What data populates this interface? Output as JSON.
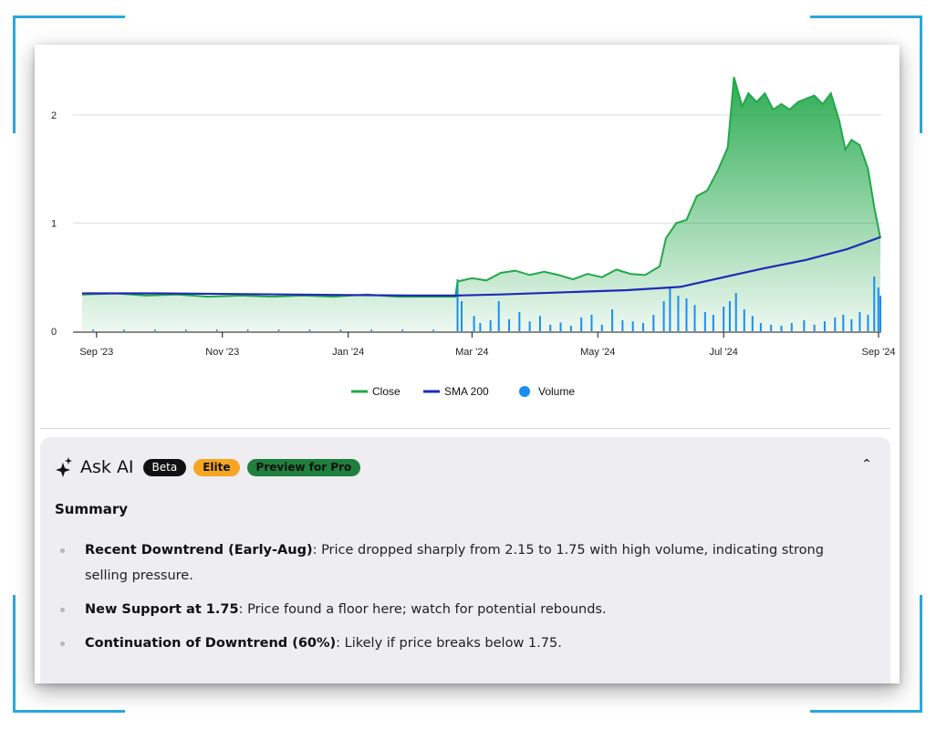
{
  "chart_data": {
    "type": "area",
    "x_ticks": [
      "Sep '23",
      "Nov '23",
      "Jan '24",
      "Mar '24",
      "May '24",
      "Jul '24",
      "Sep '24"
    ],
    "y_ticks": [
      "0",
      "1",
      "2"
    ],
    "ylim": [
      0,
      2.15
    ],
    "grid": true,
    "legend_position": "bottom-center",
    "series": [
      {
        "name": "Close",
        "color": "#22a84a",
        "points": [
          [
            "2023-08-25",
            0.34
          ],
          [
            "2023-09-10",
            0.35
          ],
          [
            "2023-09-25",
            0.33
          ],
          [
            "2023-10-10",
            0.34
          ],
          [
            "2023-10-25",
            0.32
          ],
          [
            "2023-11-10",
            0.33
          ],
          [
            "2023-11-25",
            0.32
          ],
          [
            "2023-12-10",
            0.33
          ],
          [
            "2023-12-25",
            0.32
          ],
          [
            "2024-01-10",
            0.34
          ],
          [
            "2024-01-25",
            0.32
          ],
          [
            "2024-02-10",
            0.32
          ],
          [
            "2024-02-22",
            0.32
          ],
          [
            "2024-02-23",
            0.46
          ],
          [
            "2024-03-01",
            0.49
          ],
          [
            "2024-03-08",
            0.47
          ],
          [
            "2024-03-15",
            0.54
          ],
          [
            "2024-03-22",
            0.56
          ],
          [
            "2024-03-29",
            0.52
          ],
          [
            "2024-04-05",
            0.55
          ],
          [
            "2024-04-12",
            0.52
          ],
          [
            "2024-04-19",
            0.48
          ],
          [
            "2024-04-26",
            0.53
          ],
          [
            "2024-05-03",
            0.5
          ],
          [
            "2024-05-10",
            0.57
          ],
          [
            "2024-05-17",
            0.53
          ],
          [
            "2024-05-24",
            0.52
          ],
          [
            "2024-05-31",
            0.6
          ],
          [
            "2024-06-03",
            0.86
          ],
          [
            "2024-06-08",
            1.0
          ],
          [
            "2024-06-13",
            1.03
          ],
          [
            "2024-06-18",
            1.25
          ],
          [
            "2024-06-23",
            1.3
          ],
          [
            "2024-06-28",
            1.48
          ],
          [
            "2024-07-03",
            1.7
          ],
          [
            "2024-07-06",
            2.35
          ],
          [
            "2024-07-10",
            2.08
          ],
          [
            "2024-07-13",
            2.2
          ],
          [
            "2024-07-17",
            2.12
          ],
          [
            "2024-07-21",
            2.2
          ],
          [
            "2024-07-25",
            2.05
          ],
          [
            "2024-07-29",
            2.1
          ],
          [
            "2024-08-02",
            2.05
          ],
          [
            "2024-08-06",
            2.12
          ],
          [
            "2024-08-10",
            2.15
          ],
          [
            "2024-08-14",
            2.18
          ],
          [
            "2024-08-18",
            2.1
          ],
          [
            "2024-08-22",
            2.2
          ],
          [
            "2024-08-26",
            1.95
          ],
          [
            "2024-08-29",
            1.68
          ],
          [
            "2024-09-01",
            1.77
          ],
          [
            "2024-09-05",
            1.72
          ],
          [
            "2024-09-09",
            1.5
          ],
          [
            "2024-09-12",
            1.15
          ],
          [
            "2024-09-15",
            0.86
          ]
        ]
      },
      {
        "name": "SMA 200",
        "color": "#1f2bb5",
        "points": [
          [
            "2023-08-25",
            0.35
          ],
          [
            "2023-10-01",
            0.35
          ],
          [
            "2023-12-01",
            0.34
          ],
          [
            "2024-02-01",
            0.33
          ],
          [
            "2024-02-22",
            0.33
          ],
          [
            "2024-03-15",
            0.34
          ],
          [
            "2024-04-15",
            0.36
          ],
          [
            "2024-05-15",
            0.38
          ],
          [
            "2024-06-10",
            0.41
          ],
          [
            "2024-07-01",
            0.5
          ],
          [
            "2024-07-20",
            0.58
          ],
          [
            "2024-08-10",
            0.66
          ],
          [
            "2024-08-30",
            0.76
          ],
          [
            "2024-09-15",
            0.87
          ]
        ]
      },
      {
        "name": "Volume",
        "color": "#1a8ef0",
        "bars_relative": [
          [
            "2024-02-23",
            0.95
          ],
          [
            "2024-02-25",
            0.55
          ],
          [
            "2024-03-02",
            0.28
          ],
          [
            "2024-03-05",
            0.15
          ],
          [
            "2024-03-10",
            0.2
          ],
          [
            "2024-03-14",
            0.55
          ],
          [
            "2024-03-19",
            0.22
          ],
          [
            "2024-03-24",
            0.35
          ],
          [
            "2024-03-29",
            0.18
          ],
          [
            "2024-04-03",
            0.28
          ],
          [
            "2024-04-08",
            0.12
          ],
          [
            "2024-04-13",
            0.16
          ],
          [
            "2024-04-18",
            0.1
          ],
          [
            "2024-04-23",
            0.25
          ],
          [
            "2024-04-28",
            0.3
          ],
          [
            "2024-05-03",
            0.12
          ],
          [
            "2024-05-08",
            0.4
          ],
          [
            "2024-05-13",
            0.2
          ],
          [
            "2024-05-18",
            0.18
          ],
          [
            "2024-05-23",
            0.15
          ],
          [
            "2024-05-28",
            0.3
          ],
          [
            "2024-06-02",
            0.55
          ],
          [
            "2024-06-05",
            0.8
          ],
          [
            "2024-06-09",
            0.65
          ],
          [
            "2024-06-13",
            0.6
          ],
          [
            "2024-06-17",
            0.48
          ],
          [
            "2024-06-22",
            0.35
          ],
          [
            "2024-06-26",
            0.3
          ],
          [
            "2024-07-01",
            0.45
          ],
          [
            "2024-07-04",
            0.55
          ],
          [
            "2024-07-07",
            0.7
          ],
          [
            "2024-07-11",
            0.4
          ],
          [
            "2024-07-15",
            0.28
          ],
          [
            "2024-07-19",
            0.15
          ],
          [
            "2024-07-24",
            0.12
          ],
          [
            "2024-07-29",
            0.1
          ],
          [
            "2024-08-03",
            0.15
          ],
          [
            "2024-08-09",
            0.2
          ],
          [
            "2024-08-14",
            0.12
          ],
          [
            "2024-08-19",
            0.18
          ],
          [
            "2024-08-24",
            0.25
          ],
          [
            "2024-08-28",
            0.3
          ],
          [
            "2024-09-01",
            0.22
          ],
          [
            "2024-09-05",
            0.35
          ],
          [
            "2024-09-09",
            0.3
          ],
          [
            "2024-09-12",
            1.0
          ],
          [
            "2024-09-14",
            0.8
          ],
          [
            "2024-09-15",
            0.65
          ]
        ]
      }
    ]
  },
  "legend": [
    {
      "label": "Close",
      "color": "#22a84a",
      "shape": "line"
    },
    {
      "label": "SMA 200",
      "color": "#1f2bb5",
      "shape": "line"
    },
    {
      "label": "Volume",
      "color": "#1a8ef0",
      "shape": "dot"
    }
  ],
  "ai_panel": {
    "icon": "sparkle-icon",
    "title": "Ask AI",
    "badges": [
      "Beta",
      "Elite",
      "Preview for Pro"
    ],
    "collapse_glyph": "⌃",
    "summary_heading": "Summary",
    "bullets": [
      {
        "bold": "Recent Downtrend (Early-Aug)",
        "text": ": Price dropped sharply from 2.15 to 1.75 with high volume, indicating strong selling pressure."
      },
      {
        "bold": "New Support at 1.75",
        "text": ": Price found a floor here; watch for potential rebounds."
      },
      {
        "bold": "Continuation of Downtrend (60%)",
        "text": ": Likely if price breaks below 1.75."
      }
    ]
  },
  "colors": {
    "accent_frame": "#29a8dc",
    "panel_bg": "#ededf2",
    "badge_beta": "#111111",
    "badge_elite": "#f6a623",
    "badge_pro": "#1f7f3e"
  }
}
